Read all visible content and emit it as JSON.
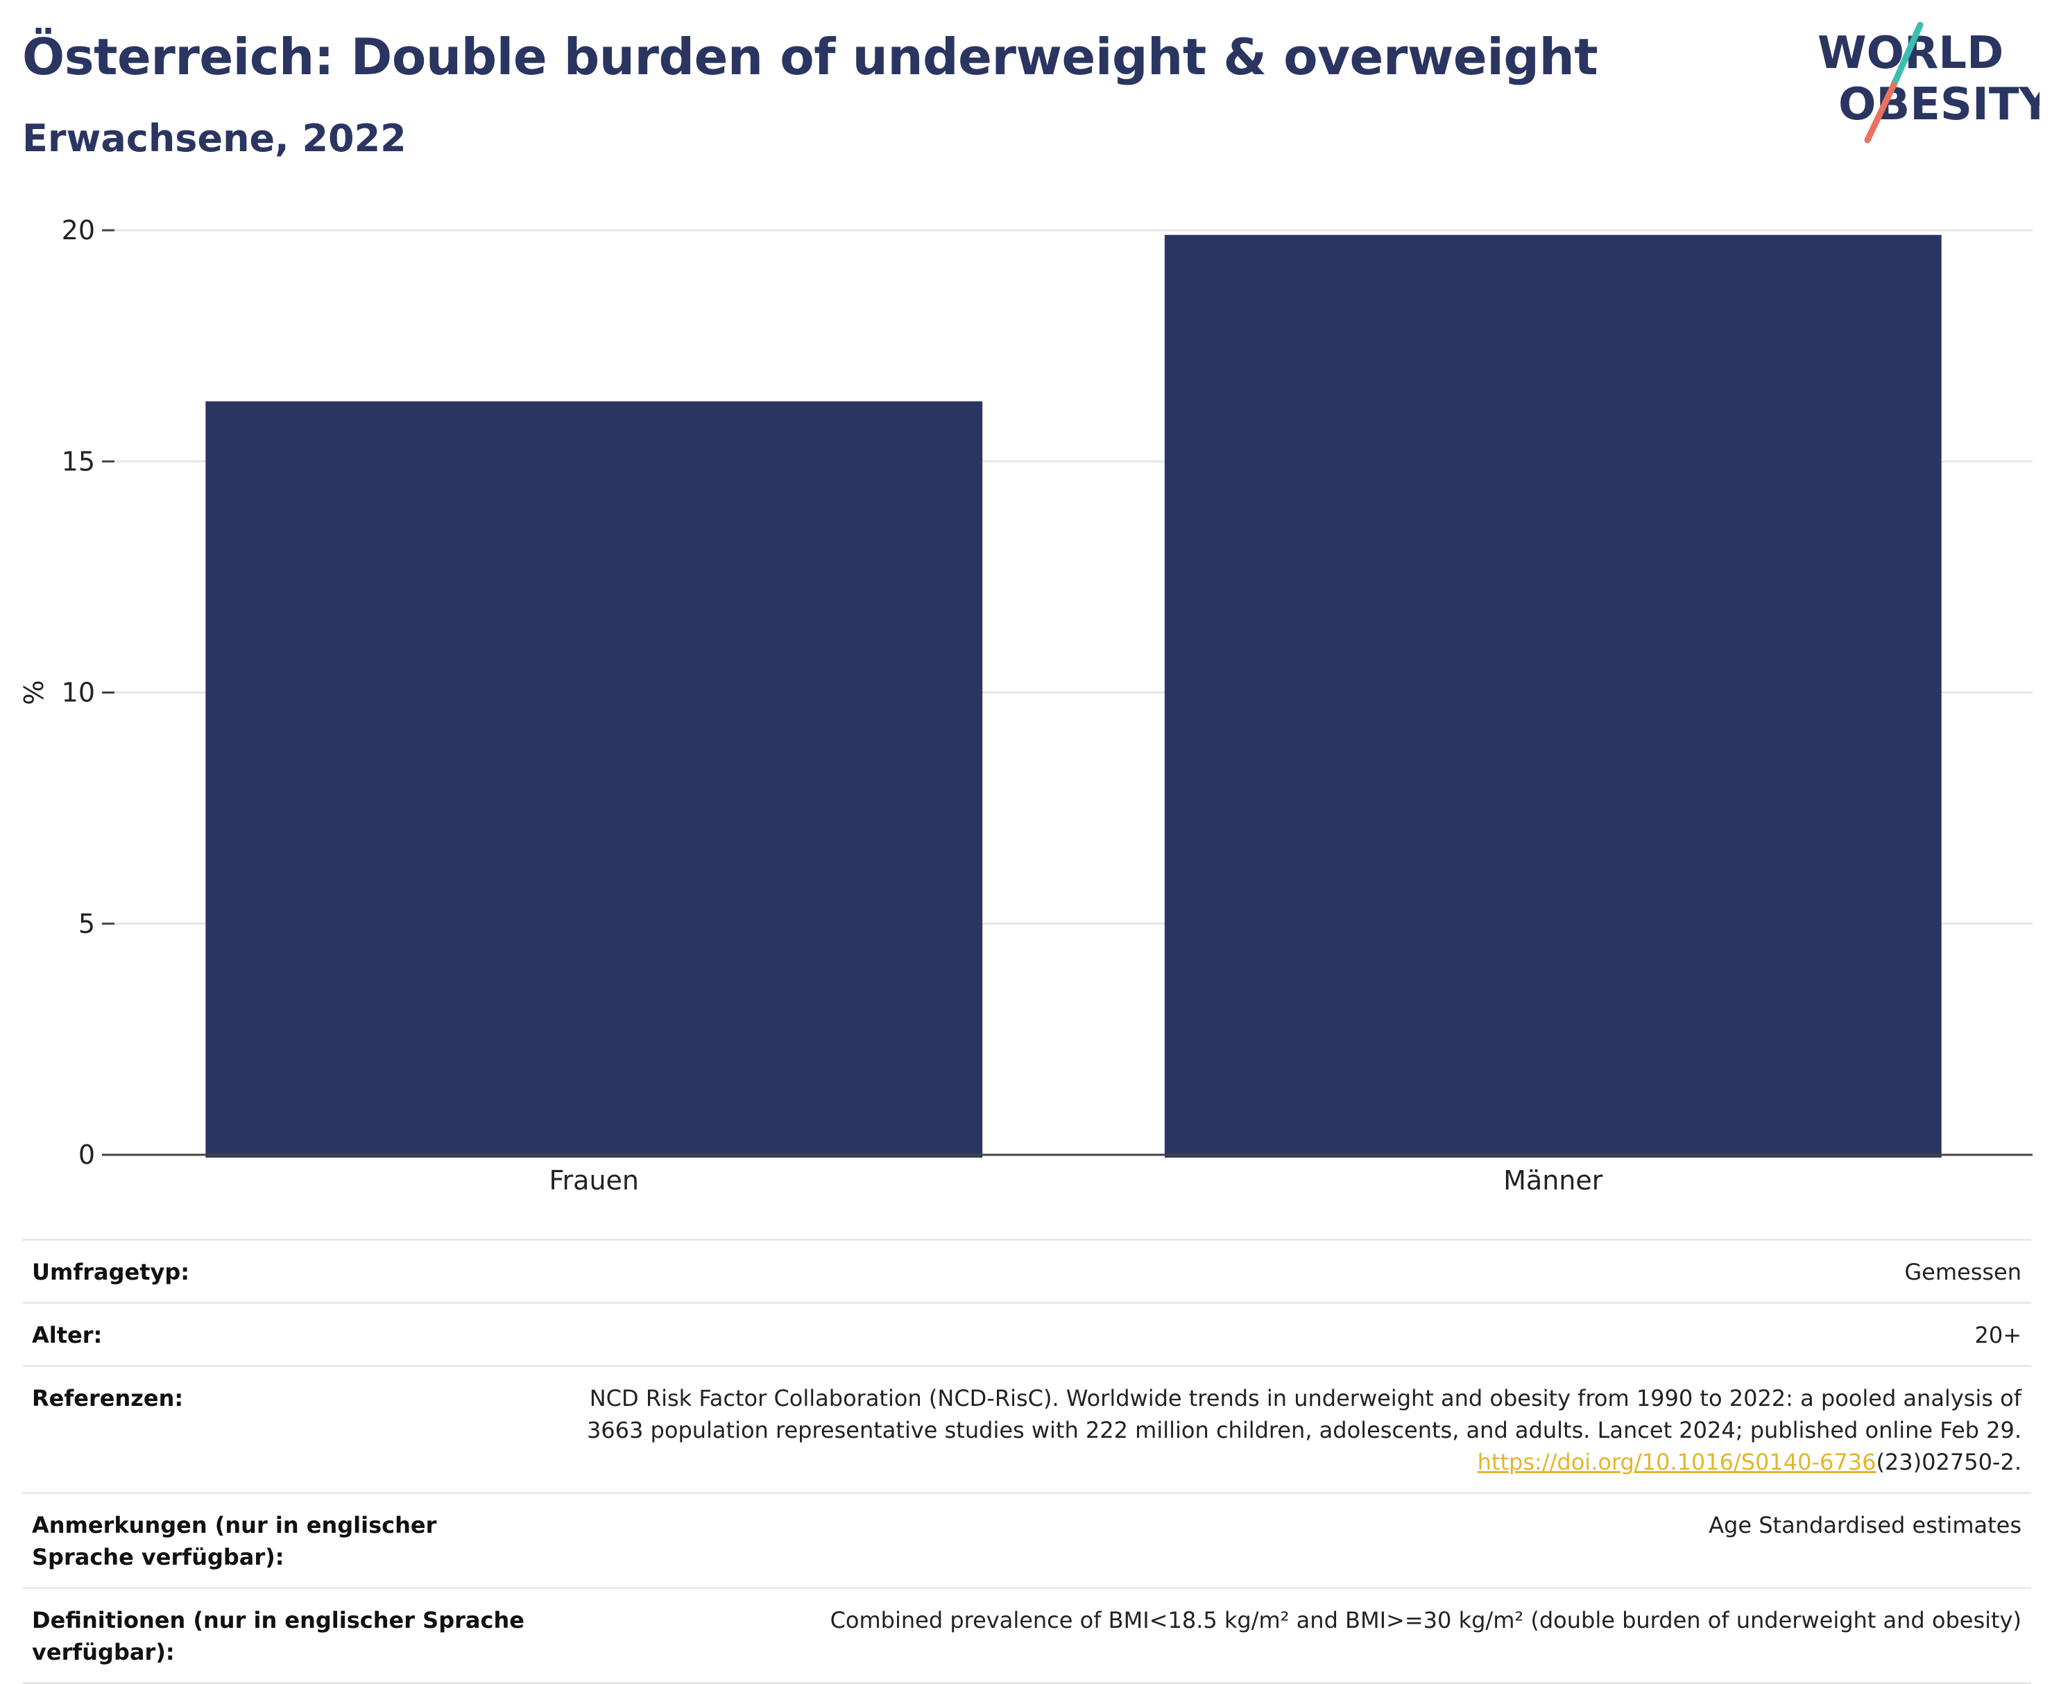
{
  "header": {
    "title": "Österreich: Double burden of underweight & overweight",
    "subtitle": "Erwachsene, 2022",
    "logo_line1": "WORLD",
    "logo_line2": "OBESITY"
  },
  "colors": {
    "bar": "#2a3561",
    "title": "#2a3561",
    "link": "#e4b52b",
    "logo_teal": "#3bbdb0",
    "logo_coral": "#e8735e"
  },
  "chart_data": {
    "type": "bar",
    "categories": [
      "Frauen",
      "Männer"
    ],
    "values": [
      16.3,
      19.9
    ],
    "title": "",
    "xlabel": "",
    "ylabel": "%",
    "ylim": [
      0,
      20
    ],
    "yticks": [
      0,
      5,
      10,
      15,
      20
    ],
    "grid": true,
    "legend": "none"
  },
  "meta": {
    "survey_label": "Umfragetyp:",
    "survey_value": "Gemessen",
    "age_label": "Alter:",
    "age_value": "20+",
    "ref_label": "Referenzen:",
    "ref_text": "NCD Risk Factor Collaboration (NCD-RisC). Worldwide trends in underweight and obesity from 1990 to 2022: a pooled analysis of 3663 population representative studies with 222 million children, adolescents, and adults. Lancet 2024; published online Feb 29.",
    "ref_link": "https://doi.org/10.1016/S0140-6736",
    "ref_suffix": "(23)02750-2.",
    "notes_label": "Anmerkungen (nur in englischer Sprache verfügbar):",
    "notes_value": "Age Standardised estimates",
    "def_label": "Definitionen (nur in englischer Sprache verfügbar):",
    "def_value": "Combined prevalence of BMI<18.5 kg/m² and BMI>=30 kg/m² (double burden of underweight and obesity)"
  }
}
